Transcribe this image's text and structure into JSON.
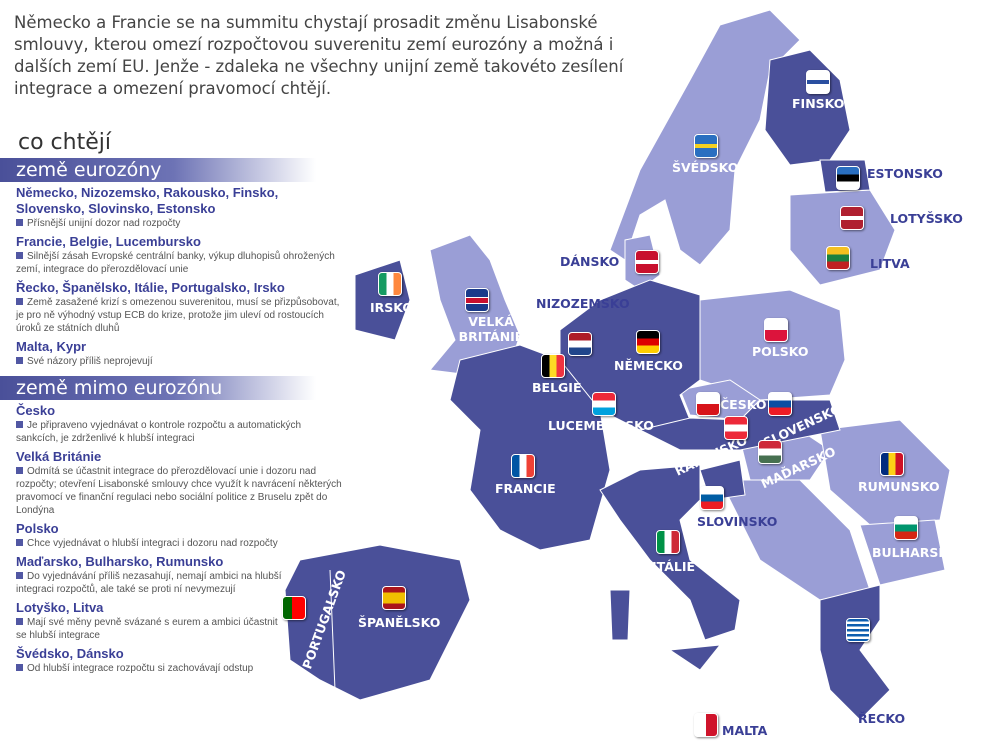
{
  "intro": "Německo a Francie se na summitu chystají prosadit změnu Lisabonské smlouvy, kterou omezí rozpočtovou suverenitu zemí eurozóny a možná i dalších zemí EU. Jenže - zdaleka ne všechny unijní země takovéto zesílení integrace a omezení pravomocí chtějí.",
  "heading": "co chtějí",
  "colors": {
    "eurozone": "#4a5099",
    "non_eurozone": "#9a9ed6",
    "text_accent": "#3a3f96"
  },
  "eurozone": {
    "title": "země eurozóny",
    "groups": [
      {
        "countries": "Německo, Nizozemsko, Rakousko, Finsko, Slovensko, Slovinsko, Estonsko",
        "text": "Přísnější unijní dozor nad rozpočty"
      },
      {
        "countries": "Francie, Belgie, Lucembursko",
        "text": "Silnější zásah Evropské centrální banky, výkup dluhopisů ohrožených zemí, integrace do přerozdělovací unie"
      },
      {
        "countries": "Řecko, Španělsko, Itálie, Portugalsko, Irsko",
        "text": "Země zasažené krizí s omezenou suverenitou, musí se přizpůsobovat, je pro ně výhodný vstup ECB do krize, protože jim uleví od rostoucích úroků ze státních dluhů"
      },
      {
        "countries": "Malta, Kypr",
        "text": "Své názory příliš neprojevují"
      }
    ]
  },
  "non_eurozone": {
    "title": "země mimo eurozónu",
    "groups": [
      {
        "countries": "Česko",
        "text": "Je připraveno vyjednávat o kontrole rozpočtu a automatických sankcích, je zdrženlivé k hlubší integraci"
      },
      {
        "countries": "Velká Británie",
        "text": "Odmítá se účastnit integrace do přerozdělovací unie i dozoru nad rozpočty; otevření Lisabonské smlouvy chce využít k navrácení některých pravomocí ve finanční regulaci nebo sociální politice z Bruselu zpět do Londýna"
      },
      {
        "countries": "Polsko",
        "text": "Chce vyjednávat o hlubší integraci i dozoru nad rozpočty"
      },
      {
        "countries": "Maďarsko, Bulharsko, Rumunsko",
        "text": "Do vyjednávání příliš nezasahují, nemají ambici na hlubší integraci rozpočtů, ale také se proti ní nevymezují"
      },
      {
        "countries": "Lotyško, Litva",
        "text": "Mají své měny pevně svázané s eurem a ambici účastnit se hlubší integrace"
      },
      {
        "countries": "Švédsko, Dánsko",
        "text": "Od hlubší integrace rozpočtu si zachovávají odstup"
      }
    ]
  },
  "map_labels": {
    "finsko": "FINSKO",
    "svedsko": "ŠVÉDSKO",
    "estonsko": "ESTONSKO",
    "lotysko": "LOTYŠSKO",
    "litva": "LITVA",
    "dansko": "DÁNSKO",
    "irsko": "IRSKO",
    "velka_britanie": "VELKÁ BRITÁNIE",
    "nizozemsko": "NIZOZEMSKO",
    "belgie": "BELGIE",
    "nemecko": "NĚMECKO",
    "polsko": "POLSKO",
    "lucembursko": "LUCEMBURSKO",
    "cesko": "ČESKO",
    "slovensko": "SLOVENSKO",
    "rakousko": "RAKOUSKO",
    "madarsko": "MAĎARSKO",
    "francie": "FRANCIE",
    "rumunsko": "RUMUNSKO",
    "slovinsko": "SLOVINSKO",
    "bulharsko": "BULHARSKO",
    "italie": "ITÁLIE",
    "portugalsko": "PORTUGALSKO",
    "spanelsko": "ŠPANĚLSKO",
    "recko": "ŘECKO",
    "malta": "MALTA"
  }
}
